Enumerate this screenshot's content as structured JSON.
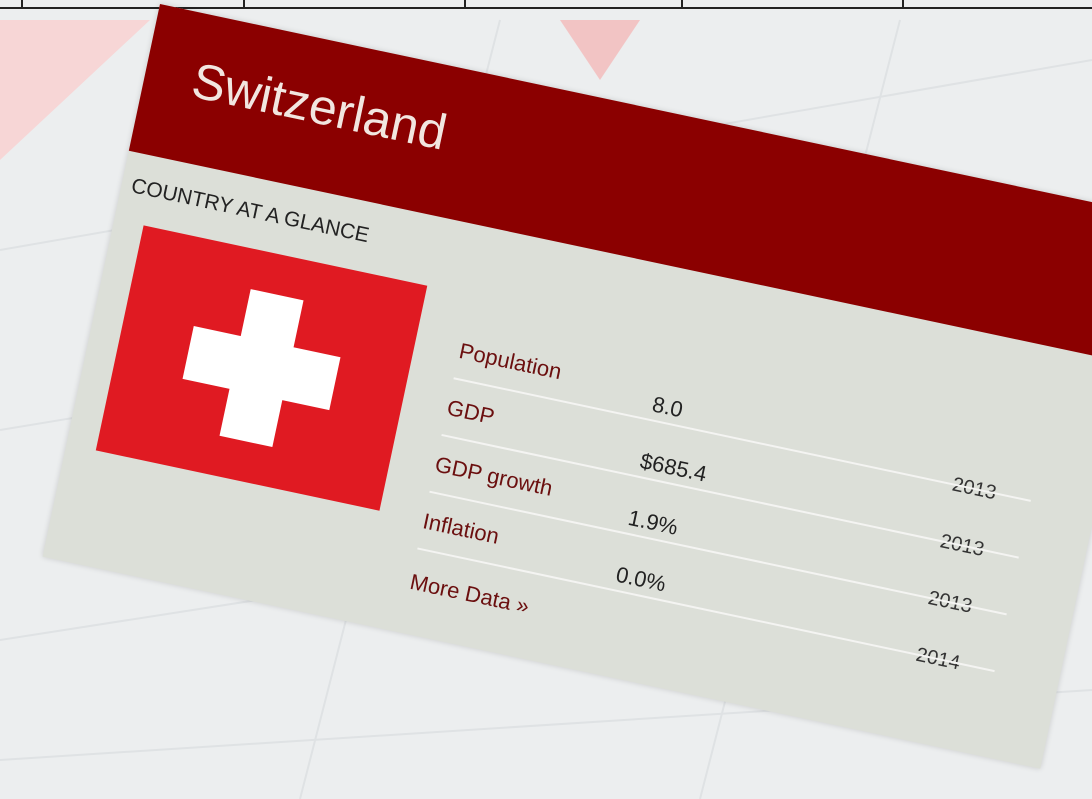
{
  "header": {
    "title": "Switzerland"
  },
  "section_title": "COUNTRY AT A GLANCE",
  "table": {
    "rows": [
      [
        "Population",
        "8.0",
        "2013"
      ],
      [
        "GDP",
        "$685.4",
        "2013"
      ],
      [
        "GDP growth",
        "1.9%",
        "2013"
      ],
      [
        "Inflation",
        "0.0%",
        "2014"
      ]
    ]
  },
  "link": "More Data »"
}
